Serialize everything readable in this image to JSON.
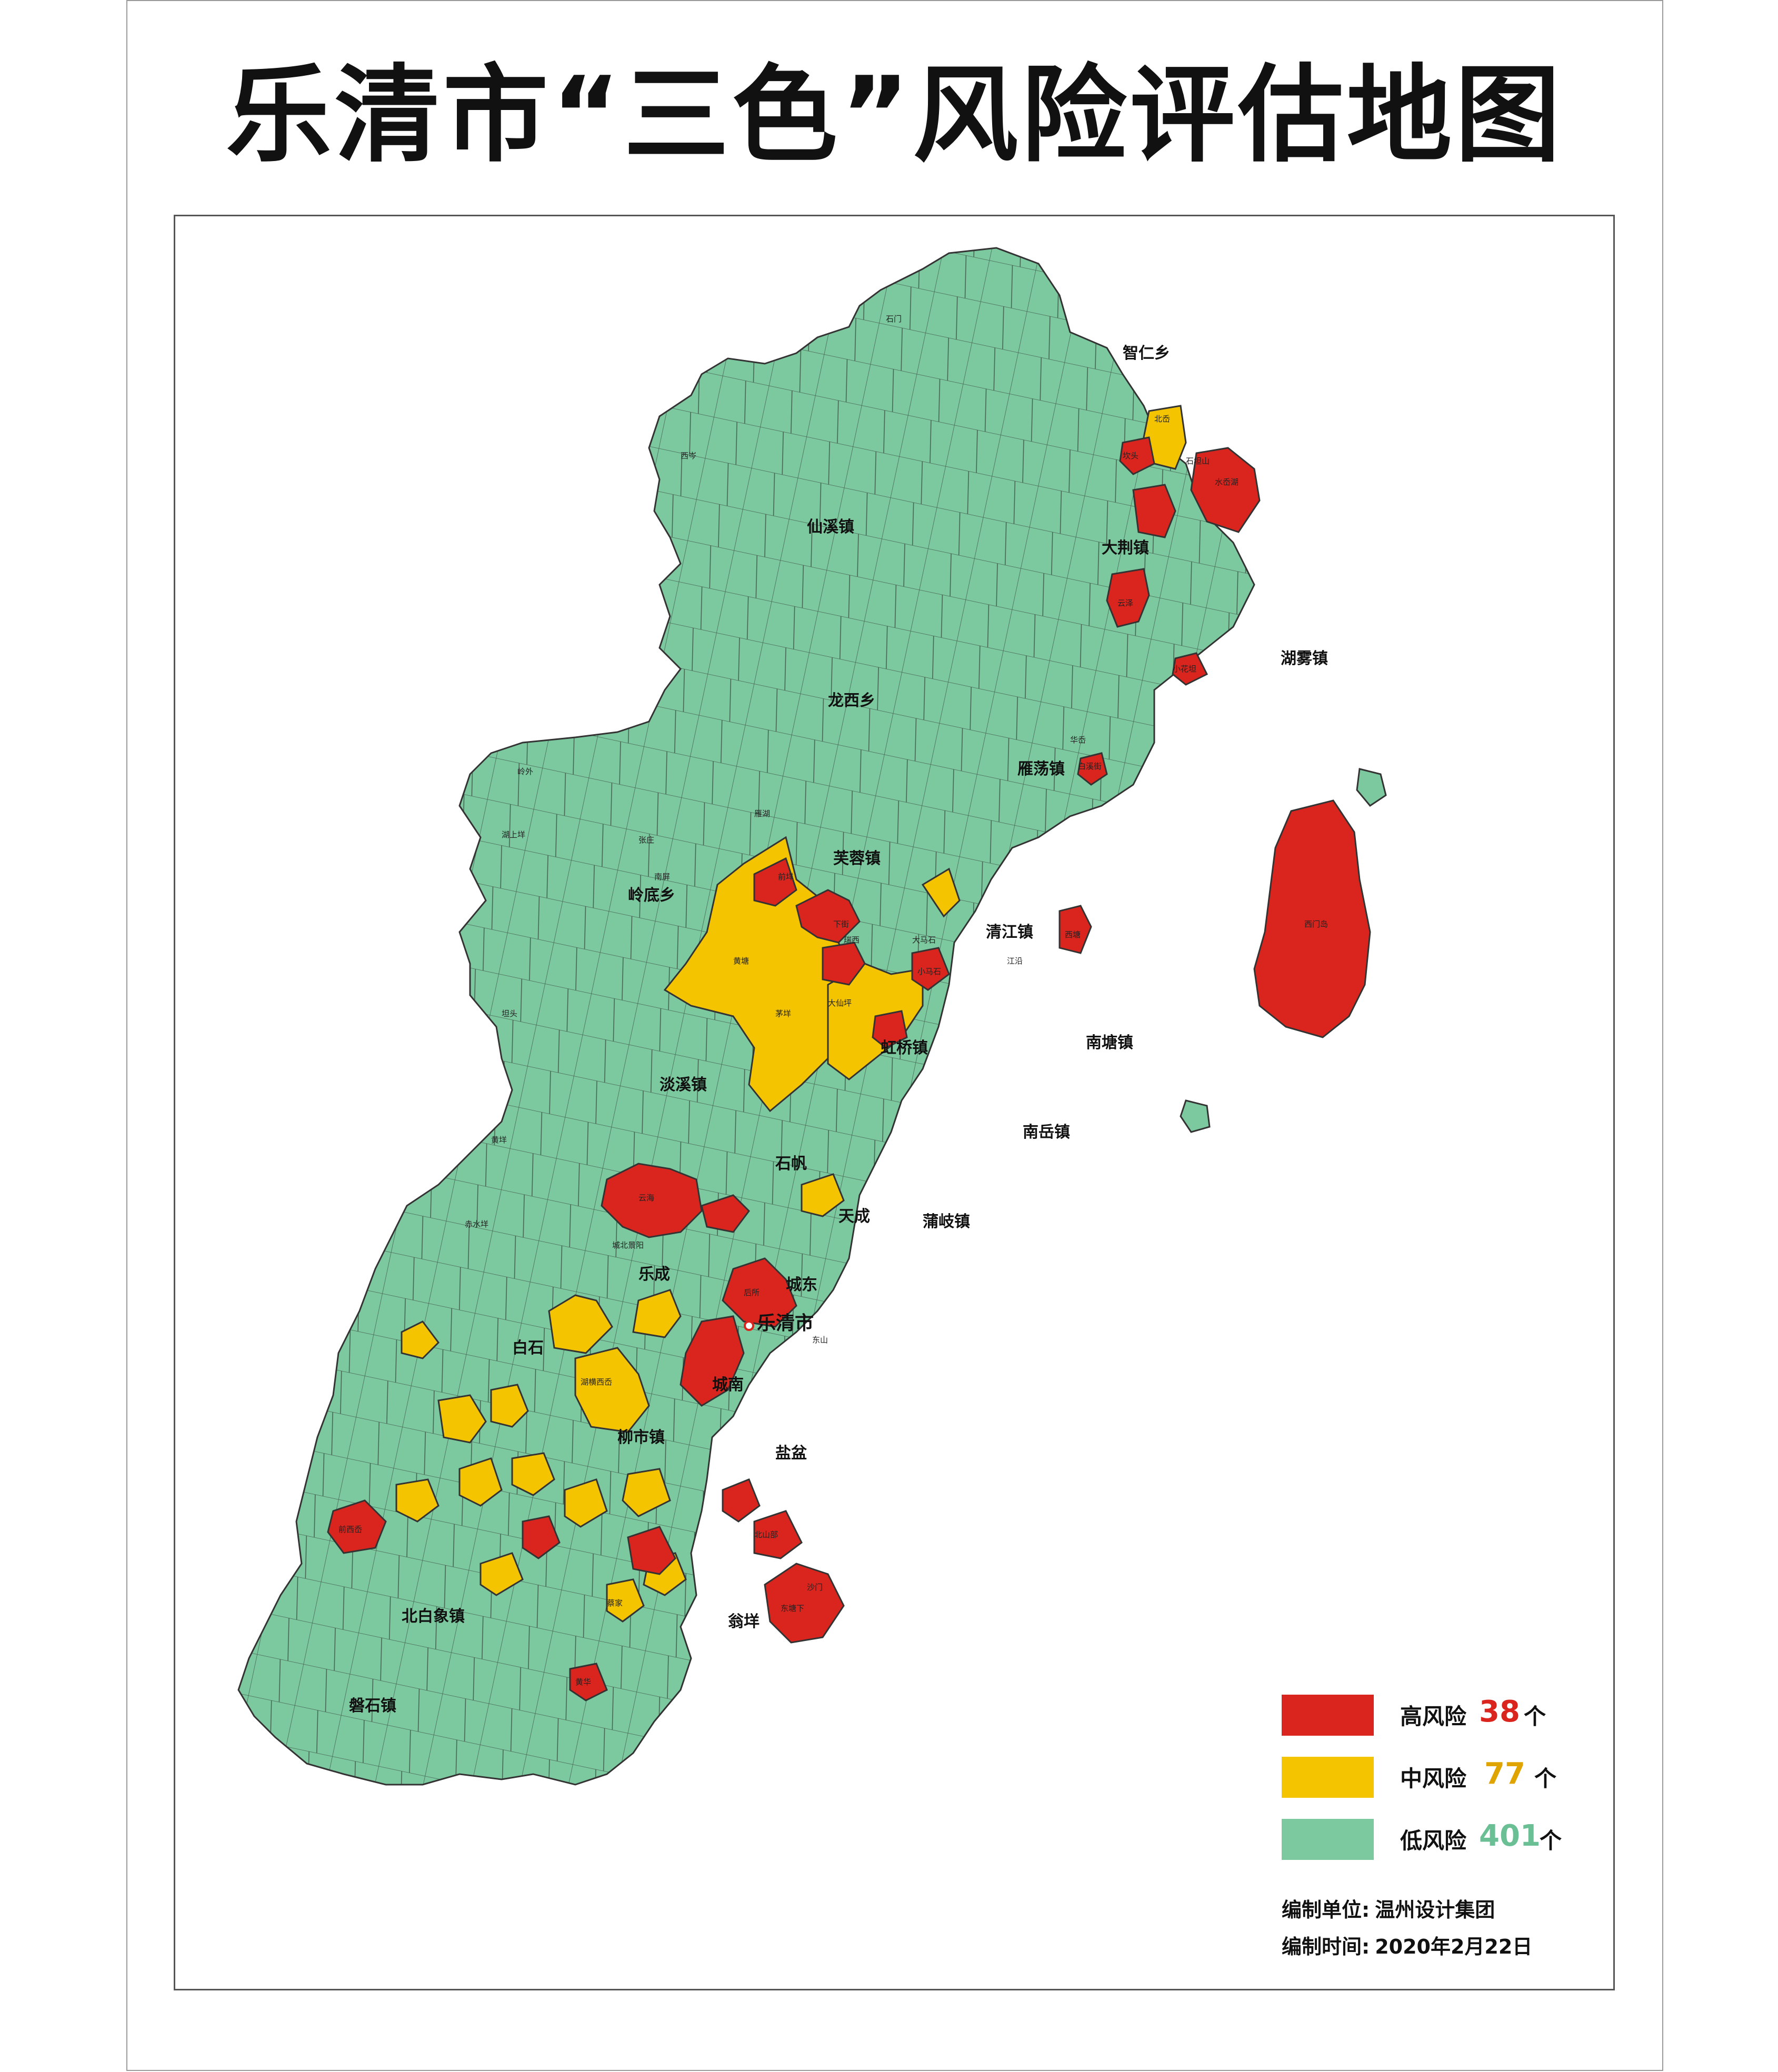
{
  "title": "乐清市“三色”风险评估地图",
  "colors": {
    "high": "#d9251d",
    "medium": "#f5c400",
    "low": "#7cc89f",
    "border": "#333333",
    "water": "#ffffff"
  },
  "map": {
    "city_label": "乐清市",
    "towns": [
      {
        "name": "智仁乡"
      },
      {
        "name": "仙溪镇"
      },
      {
        "name": "大荆镇"
      },
      {
        "name": "湖雾镇"
      },
      {
        "name": "龙西乡"
      },
      {
        "name": "雁荡镇"
      },
      {
        "name": "芙蓉镇"
      },
      {
        "name": "岭底乡"
      },
      {
        "name": "清江镇"
      },
      {
        "name": "南塘镇"
      },
      {
        "name": "虹桥镇"
      },
      {
        "name": "淡溪镇"
      },
      {
        "name": "南岳镇"
      },
      {
        "name": "石帆"
      },
      {
        "name": "天成"
      },
      {
        "name": "蒲岐镇"
      },
      {
        "name": "乐成"
      },
      {
        "name": "城东"
      },
      {
        "name": "白石"
      },
      {
        "name": "城南"
      },
      {
        "name": "柳市镇"
      },
      {
        "name": "盐盆"
      },
      {
        "name": "北白象镇"
      },
      {
        "name": "翁垟"
      },
      {
        "name": "磐石镇"
      }
    ],
    "villages": [
      {
        "name": "西门岛",
        "risk": "high"
      },
      {
        "name": "水岙湖",
        "risk": "high"
      },
      {
        "name": "石坦山",
        "risk": "medium"
      },
      {
        "name": "北岙",
        "risk": "medium"
      },
      {
        "name": "坎头",
        "risk": "high"
      },
      {
        "name": "云泽",
        "risk": "high"
      },
      {
        "name": "白溪街",
        "risk": "high"
      },
      {
        "name": "小花坦",
        "risk": "high"
      },
      {
        "name": "前垟",
        "risk": "medium"
      },
      {
        "name": "下街",
        "risk": "high"
      },
      {
        "name": "黄塘",
        "risk": "medium"
      },
      {
        "name": "茅垟",
        "risk": "medium"
      },
      {
        "name": "瑞西",
        "risk": "medium"
      },
      {
        "name": "小马石",
        "risk": "high"
      },
      {
        "name": "大马石",
        "risk": "medium"
      },
      {
        "name": "大仙坪",
        "risk": "high"
      },
      {
        "name": "云海",
        "risk": "high"
      },
      {
        "name": "后所",
        "risk": "high"
      },
      {
        "name": "湖横西岙",
        "risk": "medium"
      },
      {
        "name": "前西岙",
        "risk": "high"
      },
      {
        "name": "北山部",
        "risk": "high"
      },
      {
        "name": "东塘下",
        "risk": "medium"
      },
      {
        "name": "沙门",
        "risk": "high"
      },
      {
        "name": "黄华",
        "risk": "medium"
      },
      {
        "name": "蔡家",
        "risk": "medium"
      },
      {
        "name": "西塘",
        "risk": "medium"
      },
      {
        "name": "西岑",
        "risk": "low"
      },
      {
        "name": "石门",
        "risk": "low"
      },
      {
        "name": "雁湖",
        "risk": "low"
      },
      {
        "name": "华岙",
        "risk": "low"
      },
      {
        "name": "城北景阳",
        "risk": "low"
      },
      {
        "name": "东山",
        "risk": "low"
      },
      {
        "name": "江沿",
        "risk": "low"
      },
      {
        "name": "岭外",
        "risk": "low"
      },
      {
        "name": "湖上垟",
        "risk": "low"
      },
      {
        "name": "张庄",
        "risk": "low"
      },
      {
        "name": "南屏",
        "risk": "low"
      },
      {
        "name": "坦头",
        "risk": "low"
      },
      {
        "name": "赤水垟",
        "risk": "low"
      },
      {
        "name": "黄垟",
        "risk": "low"
      }
    ]
  },
  "legend": [
    {
      "label": "高风险",
      "count": "38",
      "unit": "个",
      "color": "#d9251d",
      "count_color": "#d9251d"
    },
    {
      "label": "中风险",
      "count": "77",
      "unit": "个",
      "color": "#f5c400",
      "count_color": "#e0a400"
    },
    {
      "label": "低风险",
      "count": "401",
      "unit": "个",
      "color": "#7cc89f",
      "count_color": "#6bbf95"
    }
  ],
  "credits": {
    "org_label": "编制单位:",
    "org_value": "温州设计集团",
    "date_label": "编制时间:",
    "date_value": "2020年2月22日"
  }
}
